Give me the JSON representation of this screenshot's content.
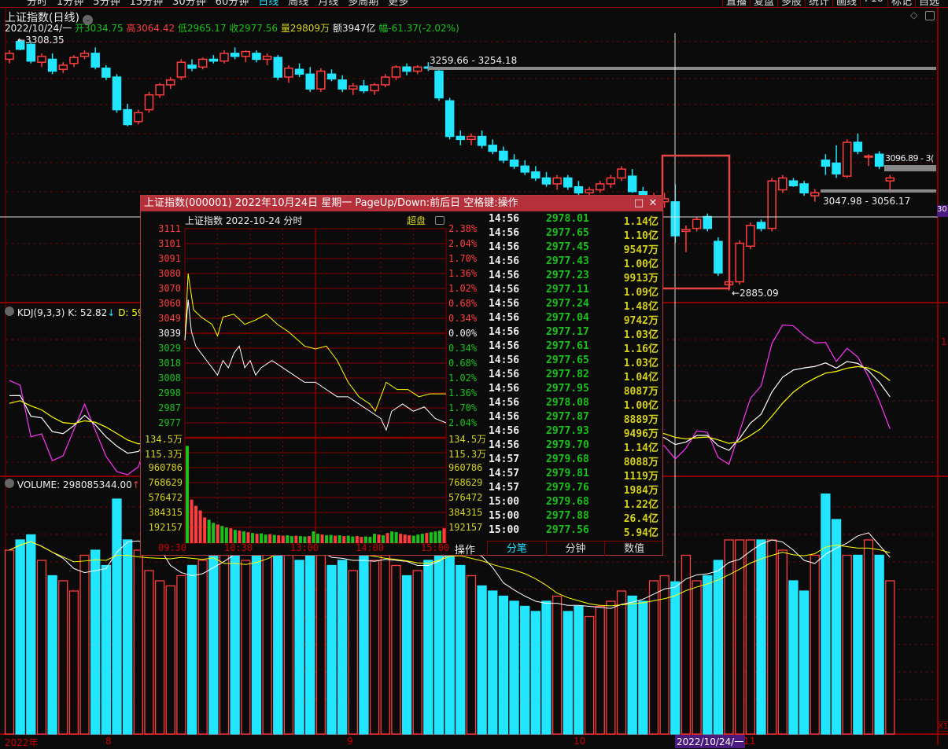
{
  "toolbar": {
    "left": [
      "分时",
      "1分钟",
      "5分钟",
      "15分钟",
      "30分钟",
      "60分钟",
      "日线",
      "周线",
      "月线",
      "多周期",
      "更多"
    ],
    "active": "日线",
    "right": [
      "直播",
      "复盘",
      "多股",
      "统计",
      "画线",
      "F10",
      "标记",
      "自选"
    ]
  },
  "chart_title": "上证指数(日线)",
  "info": {
    "date": "2022/10/24/一",
    "open": "开3034.75",
    "high": "高3064.42",
    "low": "低2965.17",
    "close": "收2977.56",
    "volume": "量29809万",
    "amount": "额3947亿",
    "change": "幅-61.37(-2.02%)"
  },
  "annotations": {
    "high_mark": "3308.35",
    "gap1": "3259.66 - 3254.18",
    "gap2": "3096.89 - 3(",
    "gap3": "3047.98 - 3056.17",
    "low_mark": "2885.09",
    "cursor_price": "30"
  },
  "colors": {
    "up": "#ff3d3d",
    "down": "#22e5ff",
    "grid": "#8a0000",
    "k": "#ffffff",
    "d": "#ffff00",
    "j": "#ff33ff",
    "highlight_box": "#e84545"
  },
  "kdj": {
    "label": "KDJ(9,3,3)",
    "k": "K: 52.82",
    "d": "D: 59."
  },
  "volume_panel": {
    "label": "VOLUME: 298085344.00",
    "m": "M",
    "corner": "X1"
  },
  "date_axis": {
    "labels": [
      "2022年",
      "8",
      "9",
      "10",
      "11"
    ],
    "cursor_date": "2022/10/24/一"
  },
  "chart_data": {
    "type": "candlestick",
    "candles_ohlc": [
      [
        3275,
        3290,
        3268,
        3285
      ],
      [
        3305,
        3308.35,
        3290,
        3292
      ],
      [
        3300,
        3305,
        3268,
        3272
      ],
      [
        3270,
        3285,
        3262,
        3280
      ],
      [
        3275,
        3285,
        3250,
        3255
      ],
      [
        3258,
        3270,
        3252,
        3265
      ],
      [
        3268,
        3282,
        3262,
        3278
      ],
      [
        3280,
        3290,
        3275,
        3285
      ],
      [
        3285,
        3295,
        3258,
        3262
      ],
      [
        3260,
        3265,
        3240,
        3245
      ],
      [
        3245,
        3250,
        3185,
        3190
      ],
      [
        3190,
        3200,
        3162,
        3165
      ],
      [
        3170,
        3190,
        3165,
        3185
      ],
      [
        3190,
        3220,
        3185,
        3215
      ],
      [
        3215,
        3235,
        3210,
        3232
      ],
      [
        3232,
        3245,
        3225,
        3240
      ],
      [
        3245,
        3275,
        3240,
        3270
      ],
      [
        3265,
        3275,
        3255,
        3260
      ],
      [
        3262,
        3278,
        3258,
        3275
      ],
      [
        3275,
        3282,
        3268,
        3272
      ],
      [
        3272,
        3290,
        3268,
        3285
      ],
      [
        3285,
        3295,
        3275,
        3280
      ],
      [
        3280,
        3290,
        3270,
        3288
      ],
      [
        3285,
        3290,
        3270,
        3275
      ],
      [
        3275,
        3285,
        3265,
        3280
      ],
      [
        3278,
        3282,
        3240,
        3245
      ],
      [
        3245,
        3265,
        3235,
        3260
      ],
      [
        3258,
        3268,
        3245,
        3250
      ],
      [
        3250,
        3262,
        3220,
        3225
      ],
      [
        3225,
        3260,
        3220,
        3255
      ],
      [
        3250,
        3258,
        3238,
        3242
      ],
      [
        3240,
        3248,
        3220,
        3225
      ],
      [
        3225,
        3235,
        3215,
        3230
      ],
      [
        3230,
        3240,
        3218,
        3222
      ],
      [
        3222,
        3235,
        3215,
        3232
      ],
      [
        3232,
        3250,
        3228,
        3245
      ],
      [
        3245,
        3265,
        3240,
        3262
      ],
      [
        3262,
        3268,
        3248,
        3255
      ],
      [
        3255,
        3265,
        3250,
        3262
      ],
      [
        3262,
        3270,
        3255,
        3260
      ],
      [
        3255,
        3262,
        3205,
        3210
      ],
      [
        3205,
        3210,
        3140,
        3145
      ],
      [
        3145,
        3155,
        3130,
        3140
      ],
      [
        3140,
        3150,
        3130,
        3145
      ],
      [
        3145,
        3155,
        3125,
        3130
      ],
      [
        3130,
        3140,
        3115,
        3120
      ],
      [
        3120,
        3128,
        3100,
        3105
      ],
      [
        3105,
        3115,
        3090,
        3095
      ],
      [
        3095,
        3105,
        3080,
        3085
      ],
      [
        3085,
        3095,
        3070,
        3075
      ],
      [
        3075,
        3085,
        3060,
        3065
      ],
      [
        3065,
        3080,
        3055,
        3075
      ],
      [
        3075,
        3080,
        3055,
        3060
      ],
      [
        3060,
        3070,
        3045,
        3050
      ],
      [
        3050,
        3060,
        3040,
        3055
      ],
      [
        3055,
        3070,
        3050,
        3065
      ],
      [
        3065,
        3080,
        3058,
        3075
      ],
      [
        3075,
        3095,
        3070,
        3090
      ],
      [
        3078,
        3090,
        3050,
        3052
      ],
      [
        3052,
        3060,
        3035,
        3040
      ],
      [
        3040,
        3050,
        3030,
        3045
      ],
      [
        3035,
        3050,
        3025,
        3040
      ],
      [
        3034.75,
        3064.42,
        2965.17,
        2977.56
      ],
      [
        2985,
        2995,
        2950,
        2988
      ],
      [
        2990,
        3010,
        2985,
        3005
      ],
      [
        3010,
        3015,
        2985,
        2990
      ],
      [
        2968,
        2975,
        2910,
        2915
      ],
      [
        2895,
        2905,
        2885.09,
        2900
      ],
      [
        2900,
        2970,
        2895,
        2965
      ],
      [
        2960,
        3000,
        2955,
        2995
      ],
      [
        3000,
        3005,
        2985,
        2990
      ],
      [
        2990,
        3075,
        2985,
        3070
      ],
      [
        3055,
        3080,
        3050,
        3075
      ],
      [
        3070,
        3075,
        3060,
        3062
      ],
      [
        3065,
        3070,
        3045,
        3050
      ],
      [
        3045,
        3056.17,
        3035,
        3050
      ],
      [
        3105,
        3115,
        3080,
        3095
      ],
      [
        3100,
        3130,
        3075,
        3082
      ],
      [
        3078,
        3140,
        3075,
        3135
      ],
      [
        3135,
        3150,
        3115,
        3120
      ],
      [
        3110,
        3115,
        3095,
        3112
      ],
      [
        3115,
        3120,
        3090,
        3095
      ],
      [
        3070,
        3080,
        3050,
        3075
      ]
    ],
    "volume": [
      3.6,
      3.8,
      3.9,
      3.4,
      3.1,
      3.0,
      2.8,
      3.5,
      3.6,
      3.3,
      4.6,
      3.8,
      3.6,
      3.2,
      3.0,
      2.9,
      3.1,
      3.3,
      3.4,
      3.6,
      3.5,
      3.8,
      3.4,
      3.6,
      3.7,
      3.9,
      3.5,
      3.4,
      3.6,
      3.5,
      3.3,
      3.4,
      3.2,
      3.6,
      3.4,
      3.5,
      3.3,
      3.1,
      3.2,
      3.4,
      3.9,
      4.2,
      3.3,
      3.1,
      2.9,
      2.8,
      2.7,
      2.6,
      2.5,
      2.4,
      2.6,
      2.7,
      2.4,
      2.5,
      2.3,
      2.5,
      2.6,
      2.8,
      2.7,
      2.6,
      3.0,
      3.1,
      2.98,
      3.5,
      3.0,
      3.1,
      3.4,
      3.8,
      3.8,
      3.8,
      3.8,
      3.8,
      3.6,
      3.0,
      2.8,
      3.5,
      4.7,
      4.2,
      3.5,
      3.5,
      3.8,
      3.5,
      3.0
    ],
    "price_range": [
      2860,
      3320
    ],
    "kdj_params": [
      9,
      3,
      3
    ]
  },
  "popup": {
    "title": "上证指数(000001) 2022年10月24日 星期一 PageUp/Down:前后日 空格键:操作",
    "subtitle": "上证指数  2022-10-24 分时",
    "super_label": "超盘",
    "price_labels": [
      "3111",
      "3101",
      "3091",
      "3080",
      "3070",
      "3060",
      "3049",
      "3039",
      "3029",
      "3018",
      "3008",
      "2998",
      "2987",
      "2977"
    ],
    "pct_labels": [
      "2.38%",
      "2.04%",
      "1.70%",
      "1.36%",
      "1.02%",
      "0.68%",
      "0.34%",
      "0.00%",
      "0.34%",
      "0.68%",
      "1.02%",
      "1.36%",
      "1.70%",
      "2.04%"
    ],
    "vol_labels": [
      "134.5万",
      "115.3万",
      "960786",
      "768629",
      "576472",
      "384315",
      "192157"
    ],
    "time_labels": [
      "09:30",
      "10:30",
      "13:00",
      "14:00",
      "15:00"
    ],
    "op_label": "操作",
    "tabs": [
      "分笔",
      "分钟",
      "数值"
    ],
    "ticks": [
      {
        "t": "14:56",
        "p": "2978.01",
        "a": "1.14亿"
      },
      {
        "t": "14:56",
        "p": "2977.65",
        "a": "1.10亿"
      },
      {
        "t": "14:56",
        "p": "2977.45",
        "a": "9547万"
      },
      {
        "t": "14:56",
        "p": "2977.43",
        "a": "1.00亿"
      },
      {
        "t": "14:56",
        "p": "2977.23",
        "a": "9913万"
      },
      {
        "t": "14:56",
        "p": "2977.11",
        "a": "1.09亿"
      },
      {
        "t": "14:56",
        "p": "2977.24",
        "a": "1.48亿"
      },
      {
        "t": "14:56",
        "p": "2977.04",
        "a": "9742万"
      },
      {
        "t": "14:56",
        "p": "2977.17",
        "a": "1.03亿"
      },
      {
        "t": "14:56",
        "p": "2977.61",
        "a": "1.16亿"
      },
      {
        "t": "14:56",
        "p": "2977.65",
        "a": "1.03亿"
      },
      {
        "t": "14:56",
        "p": "2977.82",
        "a": "1.04亿"
      },
      {
        "t": "14:56",
        "p": "2977.95",
        "a": "8087万"
      },
      {
        "t": "14:56",
        "p": "2978.08",
        "a": "1.00亿"
      },
      {
        "t": "14:56",
        "p": "2977.87",
        "a": "8889万"
      },
      {
        "t": "14:56",
        "p": "2977.93",
        "a": "9496万"
      },
      {
        "t": "14:56",
        "p": "2979.70",
        "a": "1.14亿"
      },
      {
        "t": "14:57",
        "p": "2979.68",
        "a": "8088万"
      },
      {
        "t": "14:57",
        "p": "2979.81",
        "a": "1119万"
      },
      {
        "t": "14:57",
        "p": "2979.76",
        "a": "1984万"
      },
      {
        "t": "15:00",
        "p": "2979.68",
        "a": "1.22亿"
      },
      {
        "t": "15:00",
        "p": "2977.88",
        "a": "26.4亿"
      },
      {
        "t": "15:00",
        "p": "2977.56",
        "a": "5.94亿"
      }
    ],
    "intraday": {
      "prev_close": 3039,
      "price": [
        [
          0,
          3034
        ],
        [
          3,
          3062
        ],
        [
          6,
          3040
        ],
        [
          10,
          3030
        ],
        [
          15,
          3025
        ],
        [
          20,
          3020
        ],
        [
          25,
          3015
        ],
        [
          30,
          3010
        ],
        [
          35,
          3020
        ],
        [
          40,
          3015
        ],
        [
          45,
          3025
        ],
        [
          50,
          3030
        ],
        [
          55,
          3015
        ],
        [
          60,
          3020
        ],
        [
          65,
          3010
        ],
        [
          70,
          3015
        ],
        [
          80,
          3020
        ],
        [
          90,
          3015
        ],
        [
          100,
          3010
        ],
        [
          110,
          3005
        ],
        [
          120,
          3005
        ],
        [
          130,
          3000
        ],
        [
          140,
          2995
        ],
        [
          150,
          2995
        ],
        [
          160,
          2990
        ],
        [
          170,
          2985
        ],
        [
          180,
          2980
        ],
        [
          185,
          2972
        ],
        [
          190,
          2985
        ],
        [
          200,
          2990
        ],
        [
          210,
          2985
        ],
        [
          220,
          2988
        ],
        [
          230,
          2980
        ],
        [
          240,
          2977
        ]
      ],
      "line2": [
        [
          0,
          3034
        ],
        [
          3,
          3080
        ],
        [
          8,
          3055
        ],
        [
          15,
          3050
        ],
        [
          25,
          3045
        ],
        [
          30,
          3037
        ],
        [
          35,
          3050
        ],
        [
          45,
          3052
        ],
        [
          55,
          3045
        ],
        [
          65,
          3048
        ],
        [
          75,
          3052
        ],
        [
          85,
          3045
        ],
        [
          95,
          3040
        ],
        [
          110,
          3030
        ],
        [
          120,
          3028
        ],
        [
          130,
          3030
        ],
        [
          140,
          3020
        ],
        [
          150,
          3005
        ],
        [
          160,
          2995
        ],
        [
          170,
          2990
        ],
        [
          175,
          2985
        ],
        [
          185,
          3005
        ],
        [
          195,
          3000
        ],
        [
          205,
          3000
        ],
        [
          215,
          2995
        ],
        [
          225,
          2997
        ],
        [
          240,
          2997
        ]
      ],
      "volume": [
        1250000,
        560000,
        480000,
        420000,
        330000,
        300000,
        260000,
        240000,
        220000,
        200000,
        190000,
        170000,
        160000,
        150000,
        140000,
        130000,
        120000,
        125000,
        110000,
        115000,
        105000,
        100000,
        95000,
        100000,
        90000,
        95000,
        90000,
        85000,
        90000,
        150000,
        120000,
        110000,
        100000,
        105000,
        95000,
        100000,
        90000,
        95000,
        85000,
        90000,
        80000,
        85000,
        80000,
        120000,
        110000,
        100000,
        130000,
        150000,
        140000,
        120000,
        110000,
        100000,
        95000,
        110000,
        120000,
        130000,
        140000,
        150000,
        160000,
        190000
      ],
      "volume_up": [
        0,
        1,
        1,
        1,
        1,
        0,
        0,
        1,
        0,
        0,
        1,
        0,
        1,
        0,
        1,
        0,
        1,
        0,
        0,
        1,
        0,
        1,
        1,
        0,
        0,
        1,
        0,
        0,
        1,
        0,
        0,
        1,
        0,
        0,
        1,
        0,
        1,
        0,
        0,
        1,
        1,
        0,
        0,
        0,
        1,
        0,
        1,
        0,
        0,
        1,
        1,
        1,
        0,
        0,
        0,
        1,
        0,
        0,
        0,
        1
      ]
    }
  }
}
